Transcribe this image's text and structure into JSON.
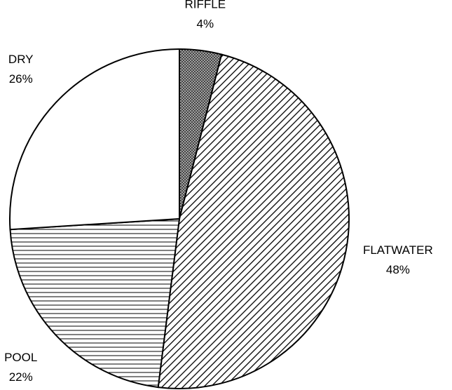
{
  "chart_data": {
    "type": "pie",
    "categories": [
      "RIFFLE",
      "FLATWATER",
      "POOL",
      "DRY"
    ],
    "values": [
      4,
      48,
      22,
      26
    ],
    "value_labels": [
      "4%",
      "48%",
      "22%",
      "26%"
    ],
    "patterns": [
      "crosshatch",
      "diagonal",
      "horizontal",
      "none"
    ]
  }
}
